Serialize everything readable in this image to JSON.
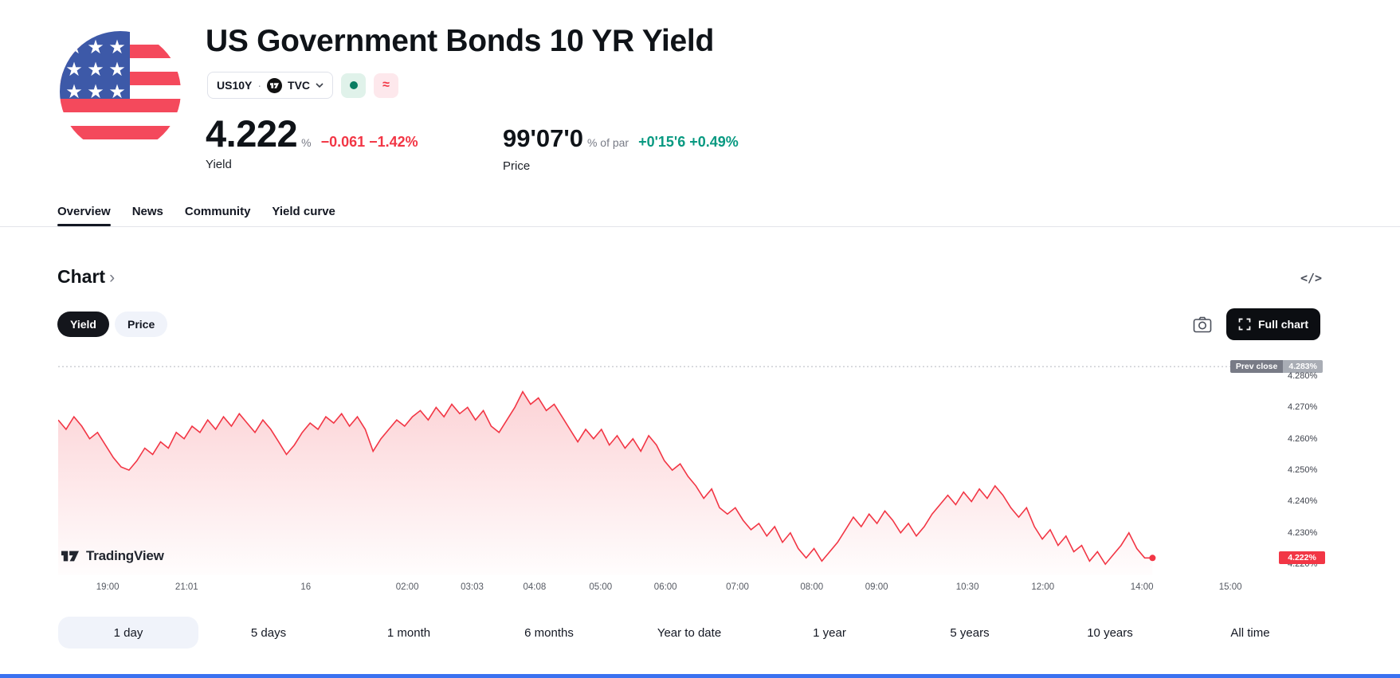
{
  "page": {
    "title": "US Government Bonds 10 YR Yield"
  },
  "header": {
    "symbol": "US10Y",
    "separator": "·",
    "exchange": "TVC",
    "badges": {
      "approx": "≈"
    },
    "yield": {
      "value": "4.222",
      "unit": "%",
      "change": "−0.061 −1.42%",
      "label": "Yield"
    },
    "price": {
      "value": "99'07'0",
      "unit": "% of par",
      "change": "+0'15'6 +0.49%",
      "label": "Price"
    },
    "colors": {
      "down": "#f23645",
      "up": "#089981"
    }
  },
  "tabs": [
    {
      "label": "Overview",
      "active": true
    },
    {
      "label": "News",
      "active": false
    },
    {
      "label": "Community",
      "active": false
    },
    {
      "label": "Yield curve",
      "active": false
    }
  ],
  "chart_section": {
    "heading": "Chart",
    "chevron": "›",
    "code_icon": "</>",
    "toggle_yield": "Yield",
    "toggle_price": "Price",
    "full_chart_label": "Full chart",
    "watermark": "TradingView"
  },
  "chart_data": {
    "type": "area",
    "title": "US Government Bonds 10 YR Yield — 1 day",
    "ylabel": "Yield (%)",
    "xlabel": "",
    "line_color": "#f23645",
    "ylim": [
      4.2165,
      4.2843
    ],
    "x_end_fraction": 0.928,
    "prev_close": {
      "label": "Prev close",
      "value": 4.283,
      "display": "4.283%"
    },
    "current": {
      "value": 4.222,
      "display": "4.222%"
    },
    "y_ticks": [
      {
        "v": 4.28,
        "label": "4.280%"
      },
      {
        "v": 4.27,
        "label": "4.270%"
      },
      {
        "v": 4.26,
        "label": "4.260%"
      },
      {
        "v": 4.25,
        "label": "4.250%"
      },
      {
        "v": 4.24,
        "label": "4.240%"
      },
      {
        "v": 4.23,
        "label": "4.230%"
      },
      {
        "v": 4.22,
        "label": "4.220%"
      }
    ],
    "x_ticks": [
      {
        "label": "19:00",
        "f": 0.042
      },
      {
        "label": "21:01",
        "f": 0.109
      },
      {
        "label": "16",
        "f": 0.21
      },
      {
        "label": "02:00",
        "f": 0.296
      },
      {
        "label": "03:03",
        "f": 0.351
      },
      {
        "label": "04:08",
        "f": 0.404
      },
      {
        "label": "05:00",
        "f": 0.46
      },
      {
        "label": "06:00",
        "f": 0.515
      },
      {
        "label": "07:00",
        "f": 0.576
      },
      {
        "label": "08:00",
        "f": 0.639
      },
      {
        "label": "09:00",
        "f": 0.694
      },
      {
        "label": "10:30",
        "f": 0.771
      },
      {
        "label": "12:00",
        "f": 0.835
      },
      {
        "label": "14:00",
        "f": 0.919
      },
      {
        "label": "15:00",
        "f": 0.994
      }
    ],
    "values": [
      4.266,
      4.263,
      4.267,
      4.264,
      4.26,
      4.262,
      4.258,
      4.254,
      4.251,
      4.25,
      4.253,
      4.257,
      4.255,
      4.259,
      4.257,
      4.262,
      4.26,
      4.264,
      4.262,
      4.266,
      4.263,
      4.267,
      4.264,
      4.268,
      4.265,
      4.262,
      4.266,
      4.263,
      4.259,
      4.255,
      4.258,
      4.262,
      4.265,
      4.263,
      4.267,
      4.265,
      4.268,
      4.264,
      4.267,
      4.263,
      4.256,
      4.26,
      4.263,
      4.266,
      4.264,
      4.267,
      4.269,
      4.266,
      4.27,
      4.267,
      4.271,
      4.268,
      4.27,
      4.266,
      4.269,
      4.264,
      4.262,
      4.266,
      4.27,
      4.275,
      4.271,
      4.273,
      4.269,
      4.271,
      4.267,
      4.263,
      4.259,
      4.263,
      4.26,
      4.263,
      4.258,
      4.261,
      4.257,
      4.26,
      4.256,
      4.261,
      4.258,
      4.253,
      4.25,
      4.252,
      4.248,
      4.245,
      4.241,
      4.244,
      4.238,
      4.236,
      4.238,
      4.234,
      4.231,
      4.233,
      4.229,
      4.232,
      4.227,
      4.23,
      4.225,
      4.222,
      4.225,
      4.221,
      4.224,
      4.227,
      4.231,
      4.235,
      4.232,
      4.236,
      4.233,
      4.237,
      4.234,
      4.23,
      4.233,
      4.229,
      4.232,
      4.236,
      4.239,
      4.242,
      4.239,
      4.243,
      4.24,
      4.244,
      4.241,
      4.245,
      4.242,
      4.238,
      4.235,
      4.238,
      4.232,
      4.228,
      4.231,
      4.226,
      4.229,
      4.224,
      4.226,
      4.221,
      4.224,
      4.22,
      4.223,
      4.226,
      4.23,
      4.225,
      4.222,
      4.222
    ]
  },
  "ranges": [
    {
      "label": "1 day",
      "active": true
    },
    {
      "label": "5 days",
      "active": false
    },
    {
      "label": "1 month",
      "active": false
    },
    {
      "label": "6 months",
      "active": false
    },
    {
      "label": "Year to date",
      "active": false
    },
    {
      "label": "1 year",
      "active": false
    },
    {
      "label": "5 years",
      "active": false
    },
    {
      "label": "10 years",
      "active": false
    },
    {
      "label": "All time",
      "active": false
    }
  ]
}
